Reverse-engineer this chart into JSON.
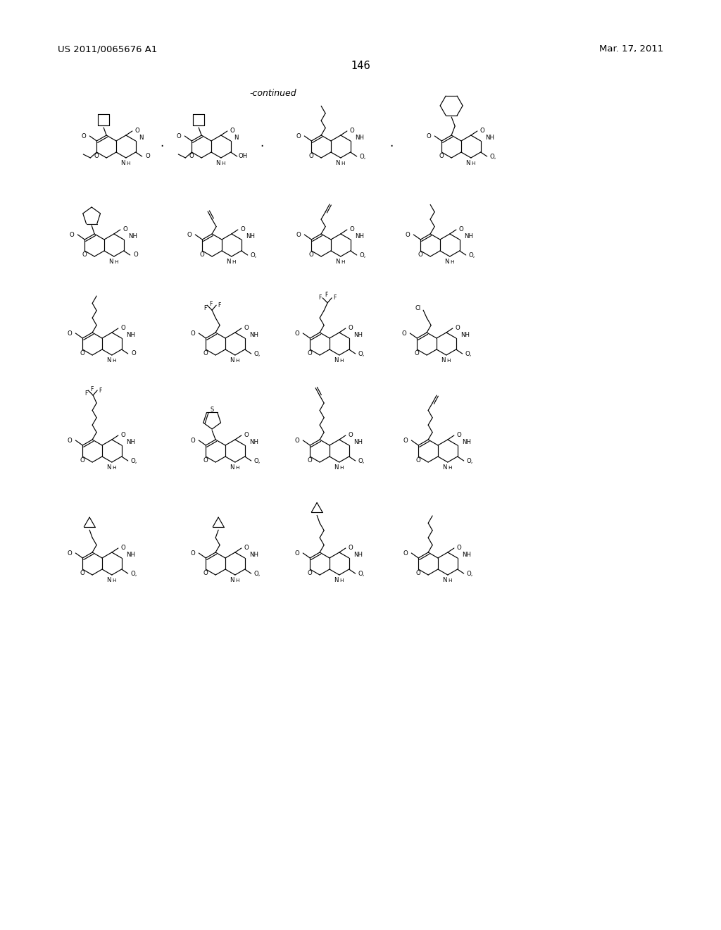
{
  "patent_number": "US 2011/0065676 A1",
  "patent_date": "Mar. 17, 2011",
  "page_number": "146",
  "continued_label": "-continued",
  "bg_color": "#ffffff",
  "line_color": "#000000",
  "figsize": [
    10.24,
    13.2
  ],
  "dpi": 100
}
